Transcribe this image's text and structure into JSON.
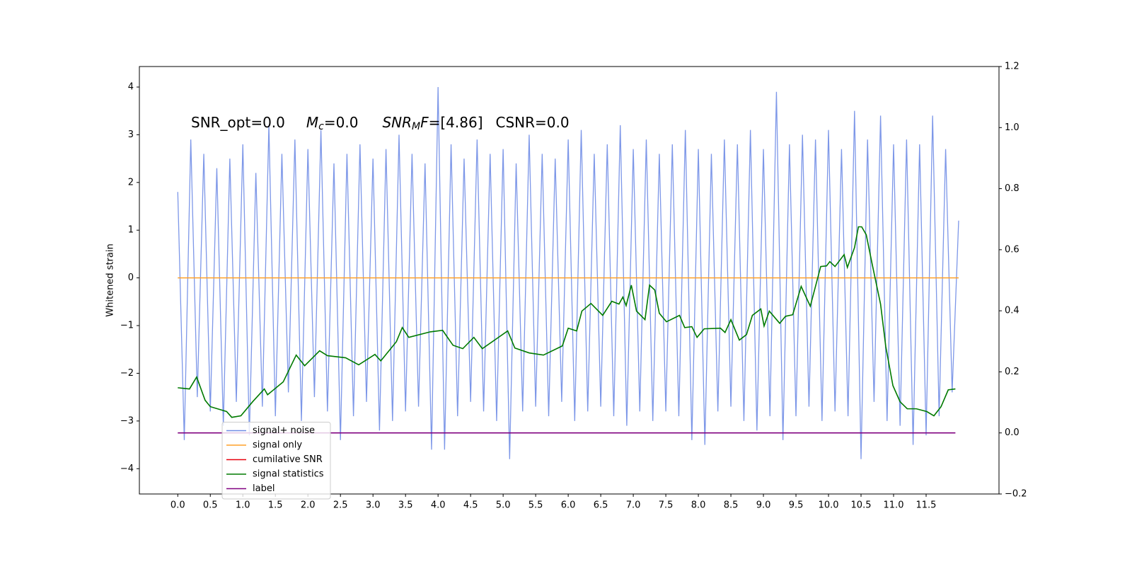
{
  "chart_data": {
    "type": "line",
    "ylabel": "Whitened strain",
    "annotations": [
      [
        {
          "text": "SNR_opt=0.0",
          "style": "normal"
        }
      ],
      [
        {
          "text": "M",
          "style": "italic"
        },
        {
          "text": "c",
          "style": "sub"
        },
        {
          "text": "=0.0",
          "style": "normal"
        }
      ],
      [
        {
          "text": "SNR",
          "style": "italic"
        },
        {
          "text": "M",
          "style": "sub"
        },
        {
          "text": "F",
          "style": "italic"
        },
        {
          "text": "=[4.86]",
          "style": "normal"
        }
      ],
      [
        {
          "text": "CSNR=0.0",
          "style": "normal"
        }
      ]
    ],
    "xlim": [
      -0.59,
      12.62
    ],
    "ylim": [
      -4.53,
      4.43
    ],
    "y2lim": [
      -0.2,
      1.2
    ],
    "xticks": [
      {
        "value": 0,
        "label": "0.0"
      },
      0.5,
      {
        "value": 1,
        "label": "1.0"
      },
      1.5,
      {
        "value": 2,
        "label": "2.0"
      },
      2.5,
      {
        "value": 3,
        "label": "3.0"
      },
      3.5,
      {
        "value": 4,
        "label": "4.0"
      },
      4.5,
      {
        "value": 5,
        "label": "5.0"
      },
      5.5,
      {
        "value": 6,
        "label": "6.0"
      },
      6.5,
      {
        "value": 7,
        "label": "7.0"
      },
      7.5,
      {
        "value": 8,
        "label": "8.0"
      },
      8.5,
      {
        "value": 9,
        "label": "9.0"
      },
      9.5,
      {
        "value": 10,
        "label": "10.0"
      },
      10.5,
      {
        "value": 11,
        "label": "11.0"
      },
      11.5
    ],
    "yticks": [
      {
        "value": -4,
        "label": "−4"
      },
      {
        "value": -3,
        "label": "−3"
      },
      {
        "value": -2,
        "label": "−2"
      },
      {
        "value": -1,
        "label": "−1"
      },
      0,
      1,
      2,
      3,
      4
    ],
    "y2ticks": [
      {
        "value": -0.2,
        "label": "−0.2"
      },
      {
        "value": 0,
        "label": "0.0"
      },
      0.2,
      0.4,
      0.6,
      0.8,
      {
        "value": 1,
        "label": "1.0"
      },
      1.2
    ],
    "legend": "lower left",
    "series": [
      {
        "name": "signal+ noise",
        "color": "#6f8ce6",
        "axis": "y",
        "x": [
          0,
          0.1,
          0.2,
          0.3,
          0.4,
          0.5,
          0.6,
          0.7,
          0.8,
          0.9,
          1,
          1.1,
          1.2,
          1.3,
          1.4,
          1.5,
          1.6,
          1.7,
          1.8,
          1.9,
          2,
          2.1,
          2.2,
          2.3,
          2.4,
          2.5,
          2.6,
          2.7,
          2.8,
          2.9,
          3,
          3.1,
          3.2,
          3.3,
          3.4,
          3.5,
          3.6,
          3.7,
          3.8,
          3.9,
          4,
          4.1,
          4.2,
          4.3,
          4.4,
          4.5,
          4.6,
          4.7,
          4.8,
          4.9,
          5,
          5.1,
          5.2,
          5.3,
          5.4,
          5.5,
          5.6,
          5.7,
          5.8,
          5.9,
          6,
          6.1,
          6.2,
          6.3,
          6.4,
          6.5,
          6.6,
          6.7,
          6.8,
          6.9,
          7,
          7.1,
          7.2,
          7.3,
          7.4,
          7.5,
          7.6,
          7.7,
          7.8,
          7.9,
          8,
          8.1,
          8.2,
          8.3,
          8.4,
          8.5,
          8.6,
          8.7,
          8.8,
          8.9,
          9,
          9.1,
          9.2,
          9.3,
          9.4,
          9.5,
          9.6,
          9.7,
          9.8,
          9.9,
          10,
          10.1,
          10.2,
          10.3,
          10.4,
          10.5,
          10.6,
          10.7,
          10.8,
          10.9,
          11,
          11.1,
          11.2,
          11.3,
          11.4,
          11.5,
          11.6,
          11.7,
          11.8,
          11.9,
          12
        ],
        "values": [
          1.8,
          -3.4,
          2.9,
          -2.5,
          2.6,
          -2.8,
          2.3,
          -3.1,
          2.5,
          -2.6,
          2.8,
          -3.3,
          2.2,
          -2.7,
          3.2,
          -2.9,
          2.6,
          -2.4,
          2.9,
          -3.0,
          2.7,
          -2.5,
          3.1,
          -2.8,
          2.4,
          -3.4,
          2.6,
          -2.9,
          2.8,
          -2.6,
          2.5,
          -3.2,
          2.7,
          -3.0,
          3.0,
          -2.8,
          2.6,
          -2.7,
          2.4,
          -3.6,
          4.0,
          -3.6,
          2.8,
          -2.9,
          2.5,
          -2.6,
          2.9,
          -2.8,
          2.6,
          -3.0,
          2.7,
          -3.8,
          2.4,
          -2.8,
          3.0,
          -2.7,
          2.6,
          -2.9,
          2.5,
          -2.6,
          2.9,
          -3.0,
          3.1,
          -2.8,
          2.6,
          -2.7,
          2.8,
          -2.9,
          3.2,
          -3.1,
          2.7,
          -2.8,
          2.9,
          -3.0,
          2.6,
          -2.8,
          2.8,
          -2.9,
          3.1,
          -3.4,
          2.7,
          -3.5,
          2.6,
          -2.8,
          2.9,
          -2.7,
          2.8,
          -3.0,
          3.1,
          -3.2,
          2.7,
          -2.9,
          3.9,
          -3.4,
          2.8,
          -2.9,
          3.0,
          -2.7,
          2.9,
          -3.0,
          3.1,
          -2.8,
          2.7,
          -2.9,
          3.5,
          -3.8,
          2.9,
          -2.6,
          3.4,
          -3.0,
          2.8,
          -3.1,
          2.9,
          -3.5,
          2.8,
          -3.3,
          3.4,
          -2.9,
          2.7,
          -2.4,
          1.2
        ]
      },
      {
        "name": "signal only",
        "color": "#ffa028",
        "axis": "y",
        "x": [
          0,
          12
        ],
        "values": [
          0,
          0
        ]
      },
      {
        "name": "cumilative SNR",
        "color": "#e8000b",
        "axis": "y2",
        "x": [],
        "values": []
      },
      {
        "name": "signal statistics",
        "color": "#007a00",
        "axis": "y2",
        "x": [
          0,
          0.18,
          0.29,
          0.42,
          0.5,
          0.75,
          0.83,
          0.97,
          1.15,
          1.33,
          1.38,
          1.62,
          1.82,
          1.95,
          2.18,
          2.3,
          2.58,
          2.78,
          3.03,
          3.12,
          3.36,
          3.45,
          3.55,
          3.88,
          4.07,
          4.23,
          4.38,
          4.55,
          4.68,
          5.07,
          5.18,
          5.4,
          5.62,
          5.91,
          6,
          6.13,
          6.21,
          6.35,
          6.53,
          6.67,
          6.78,
          6.84,
          6.89,
          6.97,
          7.05,
          7.18,
          7.25,
          7.33,
          7.4,
          7.51,
          7.71,
          7.79,
          7.9,
          7.98,
          8.09,
          8.34,
          8.41,
          8.5,
          8.63,
          8.74,
          8.83,
          8.96,
          9.01,
          9.09,
          9.25,
          9.34,
          9.45,
          9.58,
          9.72,
          9.88,
          9.97,
          10.02,
          10.1,
          10.24,
          10.29,
          10.4,
          10.46,
          10.51,
          10.58,
          10.67,
          10.8,
          10.88,
          10.99,
          11.1,
          11.21,
          11.35,
          11.51,
          11.62,
          11.73,
          11.84,
          11.95
        ],
        "values": [
          0.148,
          0.144,
          0.183,
          0.107,
          0.086,
          0.07,
          0.051,
          0.056,
          0.102,
          0.144,
          0.125,
          0.167,
          0.255,
          0.22,
          0.269,
          0.253,
          0.246,
          0.223,
          0.257,
          0.236,
          0.299,
          0.345,
          0.313,
          0.331,
          0.336,
          0.287,
          0.276,
          0.313,
          0.276,
          0.334,
          0.278,
          0.262,
          0.255,
          0.285,
          0.343,
          0.334,
          0.399,
          0.424,
          0.385,
          0.431,
          0.422,
          0.445,
          0.417,
          0.484,
          0.399,
          0.371,
          0.484,
          0.468,
          0.392,
          0.364,
          0.385,
          0.345,
          0.348,
          0.313,
          0.341,
          0.343,
          0.329,
          0.371,
          0.304,
          0.322,
          0.385,
          0.406,
          0.35,
          0.399,
          0.359,
          0.382,
          0.387,
          0.48,
          0.415,
          0.545,
          0.547,
          0.561,
          0.545,
          0.584,
          0.542,
          0.607,
          0.675,
          0.675,
          0.649,
          0.554,
          0.422,
          0.283,
          0.155,
          0.102,
          0.079,
          0.079,
          0.07,
          0.056,
          0.086,
          0.141,
          0.144
        ]
      },
      {
        "name": "label",
        "color": "#800080",
        "axis": "y2",
        "x": [
          0,
          11.95
        ],
        "values": [
          0,
          0
        ]
      }
    ]
  }
}
